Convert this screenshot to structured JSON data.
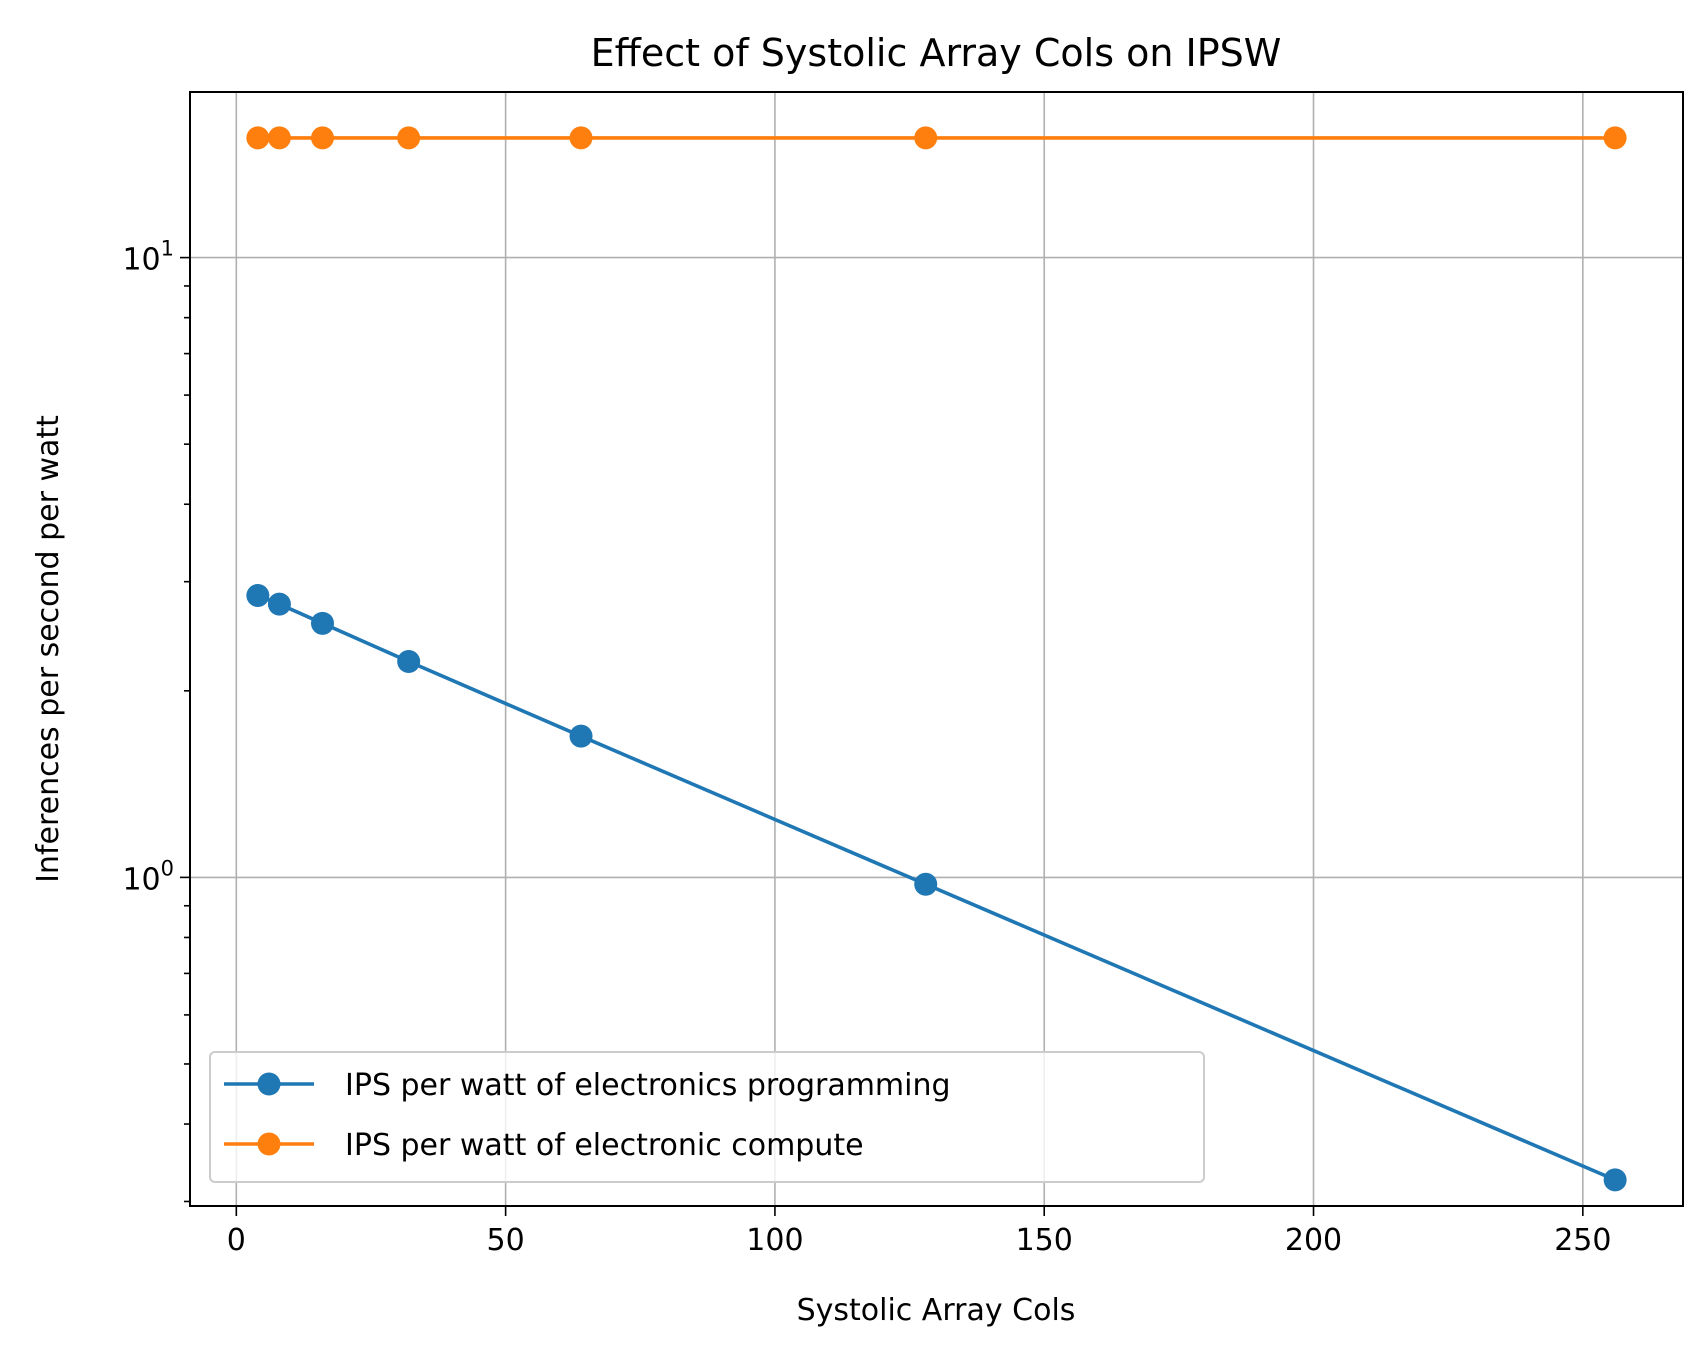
{
  "chart_data": {
    "type": "line",
    "title": "Effect of Systolic Array Cols on IPSW",
    "xlabel": "Systolic Array Cols",
    "ylabel": "Inferences per second per watt",
    "yscale": "log",
    "grid": true,
    "legend_placement": "lower-left",
    "xlim": [
      -8.6,
      268.6
    ],
    "ylim": [
      0.295,
      18.5
    ],
    "x_ticks": [
      0,
      50,
      100,
      150,
      200,
      250
    ],
    "x_tick_labels": [
      "0",
      "50",
      "100",
      "150",
      "200",
      "250"
    ],
    "y_ticks": [
      1,
      10
    ],
    "y_tick_labels": [
      {
        "base": "10",
        "exp": "0"
      },
      {
        "base": "10",
        "exp": "1"
      }
    ],
    "series": [
      {
        "name": "IPS per watt of electronics programming",
        "color": "#1f77b4",
        "x": [
          4,
          8,
          16,
          32,
          64,
          128,
          256
        ],
        "y": [
          2.85,
          2.76,
          2.57,
          2.23,
          1.69,
          0.975,
          0.325
        ]
      },
      {
        "name": "IPS per watt of electronic compute",
        "color": "#ff7f0e",
        "x": [
          4,
          8,
          16,
          32,
          64,
          128,
          256
        ],
        "y": [
          15.6,
          15.6,
          15.6,
          15.6,
          15.6,
          15.6,
          15.6
        ]
      }
    ]
  }
}
